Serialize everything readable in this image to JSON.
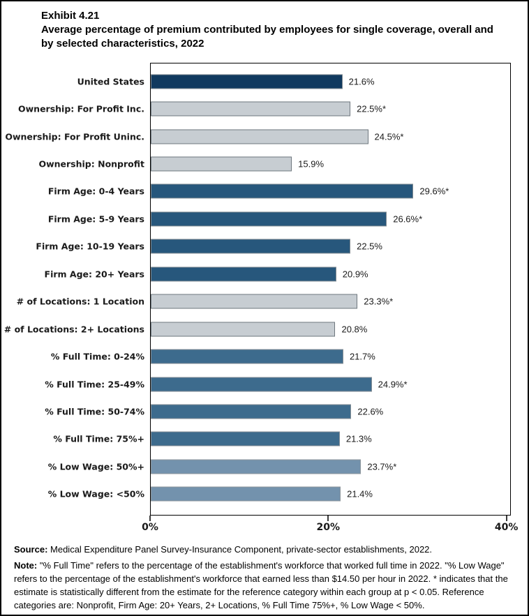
{
  "title": {
    "exhibit": "Exhibit 4.21",
    "heading": "Average percentage of premium contributed by employees for single coverage, overall and by selected characteristics, 2022"
  },
  "chart_data": {
    "type": "bar",
    "orientation": "horizontal",
    "title": "Average percentage of premium contributed by employees for single coverage, overall and by selected characteristics, 2022",
    "xlabel": "",
    "ylabel": "",
    "xlim": [
      0,
      40.5
    ],
    "grid": false,
    "legend": "none",
    "x_ticks": [
      {
        "value": 0,
        "label": "0%"
      },
      {
        "value": 20,
        "label": "20%"
      },
      {
        "value": 40,
        "label": "40%"
      }
    ],
    "bars": [
      {
        "category": "United States",
        "value": 21.6,
        "label": "21.6%",
        "fill": "#113A5F",
        "stroke": "#7F8990"
      },
      {
        "category": "Ownership: For Profit Inc.",
        "value": 22.5,
        "label": "22.5%*",
        "fill": "#C7CDD2",
        "stroke": "#6E777E"
      },
      {
        "category": "Ownership: For Profit Uninc.",
        "value": 24.5,
        "label": "24.5%*",
        "fill": "#C7CDD2",
        "stroke": "#6E777E"
      },
      {
        "category": "Ownership: Nonprofit",
        "value": 15.9,
        "label": "15.9%",
        "fill": "#C7CDD2",
        "stroke": "#6E777E"
      },
      {
        "category": "Firm Age: 0-4 Years",
        "value": 29.6,
        "label": "29.6%*",
        "fill": "#27577C",
        "stroke": "#7F8990"
      },
      {
        "category": "Firm Age: 5-9 Years",
        "value": 26.6,
        "label": "26.6%*",
        "fill": "#27577C",
        "stroke": "#7F8990"
      },
      {
        "category": "Firm Age: 10-19 Years",
        "value": 22.5,
        "label": "22.5%",
        "fill": "#27577C",
        "stroke": "#7F8990"
      },
      {
        "category": "Firm Age: 20+ Years",
        "value": 20.9,
        "label": "20.9%",
        "fill": "#27577C",
        "stroke": "#7F8990"
      },
      {
        "category": "# of Locations: 1 Location",
        "value": 23.3,
        "label": "23.3%*",
        "fill": "#C7CDD2",
        "stroke": "#6E777E"
      },
      {
        "category": "# of Locations: 2+ Locations",
        "value": 20.8,
        "label": "20.8%",
        "fill": "#C7CDD2",
        "stroke": "#6E777E"
      },
      {
        "category": "% Full Time: 0-24%",
        "value": 21.7,
        "label": "21.7%",
        "fill": "#3D6B8D",
        "stroke": "#848E95"
      },
      {
        "category": "% Full Time: 25-49%",
        "value": 24.9,
        "label": "24.9%*",
        "fill": "#3D6B8D",
        "stroke": "#848E95"
      },
      {
        "category": "% Full Time: 50-74%",
        "value": 22.6,
        "label": "22.6%",
        "fill": "#3D6B8D",
        "stroke": "#848E95"
      },
      {
        "category": "% Full Time: 75%+",
        "value": 21.3,
        "label": "21.3%",
        "fill": "#3D6B8D",
        "stroke": "#848E95"
      },
      {
        "category": "% Low Wage: 50%+",
        "value": 23.7,
        "label": "23.7%*",
        "fill": "#7392AD",
        "stroke": "#8D959B"
      },
      {
        "category": "% Low Wage: <50%",
        "value": 21.4,
        "label": "21.4%",
        "fill": "#7392AD",
        "stroke": "#8D959B"
      }
    ]
  },
  "footer": {
    "source_label": "Source:",
    "source_text": " Medical Expenditure Panel Survey-Insurance Component, private-sector establishments, 2022.",
    "note_label": "Note:",
    "note_text": " \"% Full Time\" refers to the percentage of the establishment's workforce that worked full time in 2022. \"% Low Wage\" refers to the percentage of the establishment's workforce that earned less than $14.50 per hour in 2022. * indicates that the estimate is statistically different from the estimate for the reference category within each group at p < 0.05.  Reference categories are: Nonprofit, Firm Age: 20+ Years, 2+ Locations, % Full Time 75%+, % Low Wage < 50%."
  }
}
